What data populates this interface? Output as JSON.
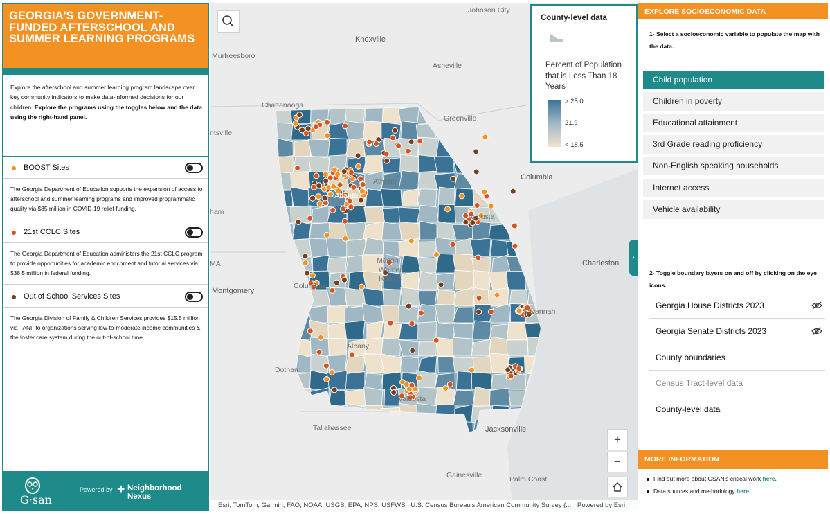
{
  "app": {
    "title": "GEORGIA'S GOVERNMENT-FUNDED AFTERSCHOOL AND SUMMER LEARNING PROGRAMS",
    "intro_text": "Explore the afterschool and summer learning program landscape over key community indicators to make data-informed decisions for our children.",
    "intro_bold": "Explore the programs using the toggles below and the data using the right-hand panel."
  },
  "layers": [
    {
      "label": "BOOST Sites",
      "color": "#f39123",
      "on": false,
      "description": "The Georgia Department of Education supports the expansion of access to afterschool and summer learning programs and improved programmatic quality via $85 million in COVID-19 relief funding."
    },
    {
      "label": "21st CCLC Sites",
      "color": "#d9531e",
      "on": false,
      "description": "The Georgia Department of Education administers the 21st CCLC program to provide opportunities for academic enrichment and tutorial services via $38.5 million in federal funding."
    },
    {
      "label": "Out of School Services Sites",
      "color": "#7a3e1e",
      "on": false,
      "description": "The Georgia Division of Family & Children Services provides $15.5 million via TANF to organizations serving low-to-moderate income communities & the foster care system during the out-of-school time."
    }
  ],
  "footer": {
    "logo_text": "G·san",
    "powered_by": "Powered by",
    "partner": "Neighborhood Nexus"
  },
  "map": {
    "city_labels": [
      "Johnson City",
      "Knoxville",
      "Murfreesboro",
      "Asheville",
      "Chattanooga",
      "Greenville",
      "Athens",
      "Columbia",
      "Atlanta",
      "Augusta",
      "Charleston",
      "Macon",
      "Warner Robins",
      "Montgomery",
      "Columbus",
      "Savannah",
      "Albany",
      "Dothan",
      "Valdosta",
      "Tallahassee",
      "Jacksonville",
      "Gainesville",
      "Palm Coast"
    ],
    "partial_labels": [
      "ntsville",
      "ham",
      "MA"
    ],
    "attribution": "Esri, TomTom, Garmin, FAO, NOAA, USGS, EPA, NPS, USFWS | U.S. Census Bureau's American Community Survey (...",
    "powered_by": "Powered by Esri",
    "zoom_in": "+",
    "zoom_out": "−",
    "home_icon": "home-icon",
    "search_icon": "search-icon"
  },
  "legend": {
    "title": "County-level data",
    "subtitle": "Percent of Population that is Less Than 18 Years",
    "ticks": [
      "> 25.0",
      "21.9",
      "< 18.5"
    ],
    "ramp_colors": [
      "#3b7396",
      "#9fb8c4",
      "#efe2cc"
    ]
  },
  "right_panel": {
    "explore_header": "EXPLORE SOCIOECONOMIC DATA",
    "step1": "1- Select a socioeconomic variable to populate the map with the data.",
    "variables": [
      "Child population",
      "Children in poverty",
      "Educational attainment",
      "3rd Grade reading proficiency",
      "Non-English speaking households",
      "Internet access",
      "Vehicle availability"
    ],
    "active_variable": "Child population",
    "step2": "2- Toggle boundary layers on and off by clicking on the eye icons.",
    "boundaries": [
      {
        "label": "Georgia House Districts 2023",
        "eye": "eye-off-icon"
      },
      {
        "label": "Georgia Senate Districts 2023",
        "eye": "eye-off-icon"
      },
      {
        "label": "County boundaries"
      },
      {
        "label": "Census Tract-level data",
        "dim": true
      },
      {
        "label": "County-level data"
      }
    ],
    "more_header": "MORE INFORMATION",
    "info1_text": "Find out more about GSAN's critical work",
    "info1_link": "here.",
    "info2_text": "Data sources and methodology",
    "info2_link": "here."
  },
  "colors": {
    "accent_orange": "#f39123",
    "accent_teal": "#1f8a8a"
  }
}
